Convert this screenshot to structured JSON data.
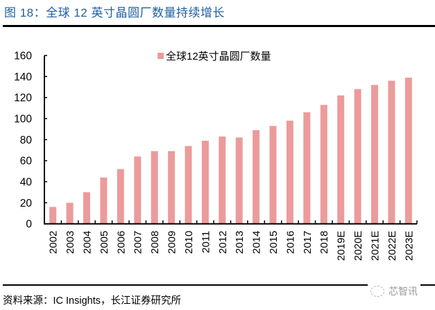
{
  "header": {
    "title": "图 18：全球 12 英寸晶圆厂数量持续增长"
  },
  "footer": {
    "source": "资料来源：IC Insights，长江证券研究所",
    "watermark": "芯智讯",
    "watermark_icon": "wechat-icon"
  },
  "colors": {
    "bar": "#ec9b9b",
    "title": "#1f5f9e",
    "axis": "#000000"
  },
  "chart_data": {
    "type": "bar",
    "title": "",
    "xlabel": "",
    "ylabel": "",
    "legend": {
      "entries": [
        "全球12英寸晶圆厂数量"
      ],
      "placement": "top-center"
    },
    "categories": [
      "2002",
      "2003",
      "2004",
      "2005",
      "2006",
      "2007",
      "2008",
      "2009",
      "2010",
      "2011",
      "2012",
      "2013",
      "2014",
      "2015",
      "2016",
      "2017",
      "2018",
      "2019E",
      "2020E",
      "2021E",
      "2022E",
      "2023E"
    ],
    "series": [
      {
        "name": "全球12英寸晶圆厂数量",
        "values": [
          16,
          20,
          30,
          44,
          52,
          64,
          69,
          69,
          74,
          79,
          83,
          82,
          89,
          93,
          98,
          106,
          113,
          122,
          128,
          132,
          136,
          139
        ]
      }
    ],
    "ylim": [
      0,
      160
    ],
    "yticks": [
      0,
      20,
      40,
      60,
      80,
      100,
      120,
      140,
      160
    ],
    "grid": false,
    "x_tick_label_rotation": "vertical"
  }
}
